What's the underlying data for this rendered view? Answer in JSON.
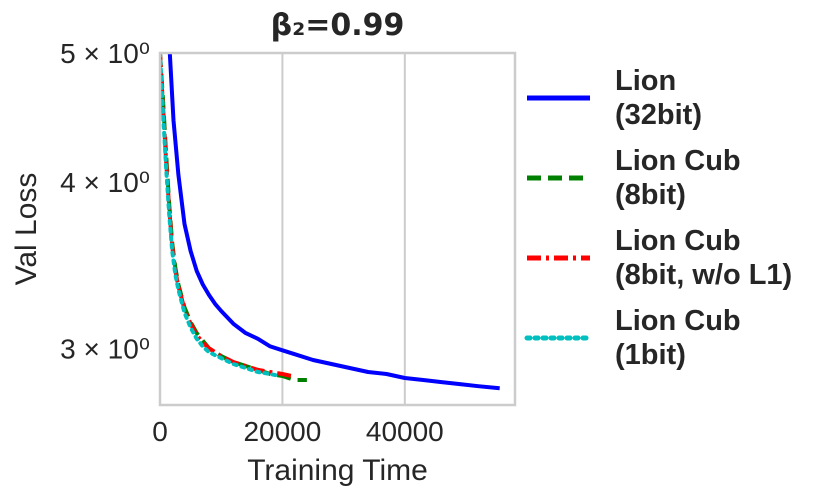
{
  "chart_data": {
    "type": "line",
    "title": "β₂=0.99",
    "xlabel": "Training Time",
    "ylabel": "Val Loss",
    "yscale": "log",
    "xlim": [
      0,
      58000
    ],
    "ylim": [
      2.72,
      5.0
    ],
    "xticks": [
      {
        "value": 0,
        "label": "0"
      },
      {
        "value": 20000,
        "label": "20000"
      },
      {
        "value": 40000,
        "label": "40000"
      }
    ],
    "yticks": [
      {
        "value": 5,
        "label": "5 × 10⁰"
      },
      {
        "value": 4,
        "label": "4 × 10⁰"
      },
      {
        "value": 3,
        "label": "3 × 10⁰"
      }
    ],
    "grid": true,
    "legend_position": "right",
    "series": [
      {
        "name": "Lion\n(32bit)",
        "color": "#0000ff",
        "dash": "solid",
        "x": [
          1600,
          2200,
          3000,
          4000,
          5000,
          6000,
          7000,
          8000,
          9000,
          10000,
          12000,
          14000,
          16000,
          18000,
          20000,
          22000,
          25000,
          28000,
          31000,
          34000,
          37000,
          40000,
          43000,
          46000,
          49000,
          52000,
          55500
        ],
        "y": [
          5.0,
          4.45,
          4.05,
          3.72,
          3.55,
          3.43,
          3.35,
          3.29,
          3.24,
          3.2,
          3.13,
          3.08,
          3.05,
          3.01,
          2.99,
          2.97,
          2.94,
          2.92,
          2.9,
          2.88,
          2.87,
          2.85,
          2.84,
          2.83,
          2.82,
          2.81,
          2.8
        ]
      },
      {
        "name": "Lion Cub\n(8bit)",
        "color": "#008000",
        "dash": "dashed",
        "x": [
          0,
          500,
          1000,
          1500,
          2000,
          2500,
          3000,
          4000,
          5000,
          6000,
          7000,
          8000,
          10000,
          12000,
          14000,
          16000,
          18000,
          20000,
          22000,
          24000
        ],
        "y": [
          5.0,
          4.6,
          4.2,
          3.85,
          3.6,
          3.45,
          3.35,
          3.22,
          3.14,
          3.08,
          3.04,
          3.0,
          2.96,
          2.93,
          2.91,
          2.89,
          2.87,
          2.86,
          2.84,
          2.84
        ]
      },
      {
        "name": "Lion Cub\n(8bit, w/o L1)",
        "color": "#ff0000",
        "dash": "dashdot",
        "x": [
          0,
          500,
          1000,
          1500,
          2000,
          2500,
          3000,
          4000,
          5000,
          6000,
          7000,
          8000,
          10000,
          12000,
          14000,
          16000,
          18000,
          20000,
          21500
        ],
        "y": [
          5.0,
          4.55,
          4.15,
          3.82,
          3.58,
          3.43,
          3.34,
          3.21,
          3.13,
          3.07,
          3.03,
          3.0,
          2.96,
          2.93,
          2.91,
          2.89,
          2.88,
          2.87,
          2.86
        ]
      },
      {
        "name": "Lion Cub\n(1bit)",
        "color": "#00bfbf",
        "dash": "dotted",
        "x": [
          0,
          500,
          1000,
          1500,
          2000,
          2500,
          3000,
          4000,
          5000,
          6000,
          7000,
          8000,
          10000,
          12000,
          14000,
          16000,
          18000,
          19500
        ],
        "y": [
          5.0,
          4.5,
          4.1,
          3.78,
          3.55,
          3.41,
          3.32,
          3.19,
          3.11,
          3.05,
          3.01,
          2.98,
          2.95,
          2.92,
          2.9,
          2.88,
          2.87,
          2.86
        ]
      }
    ]
  }
}
